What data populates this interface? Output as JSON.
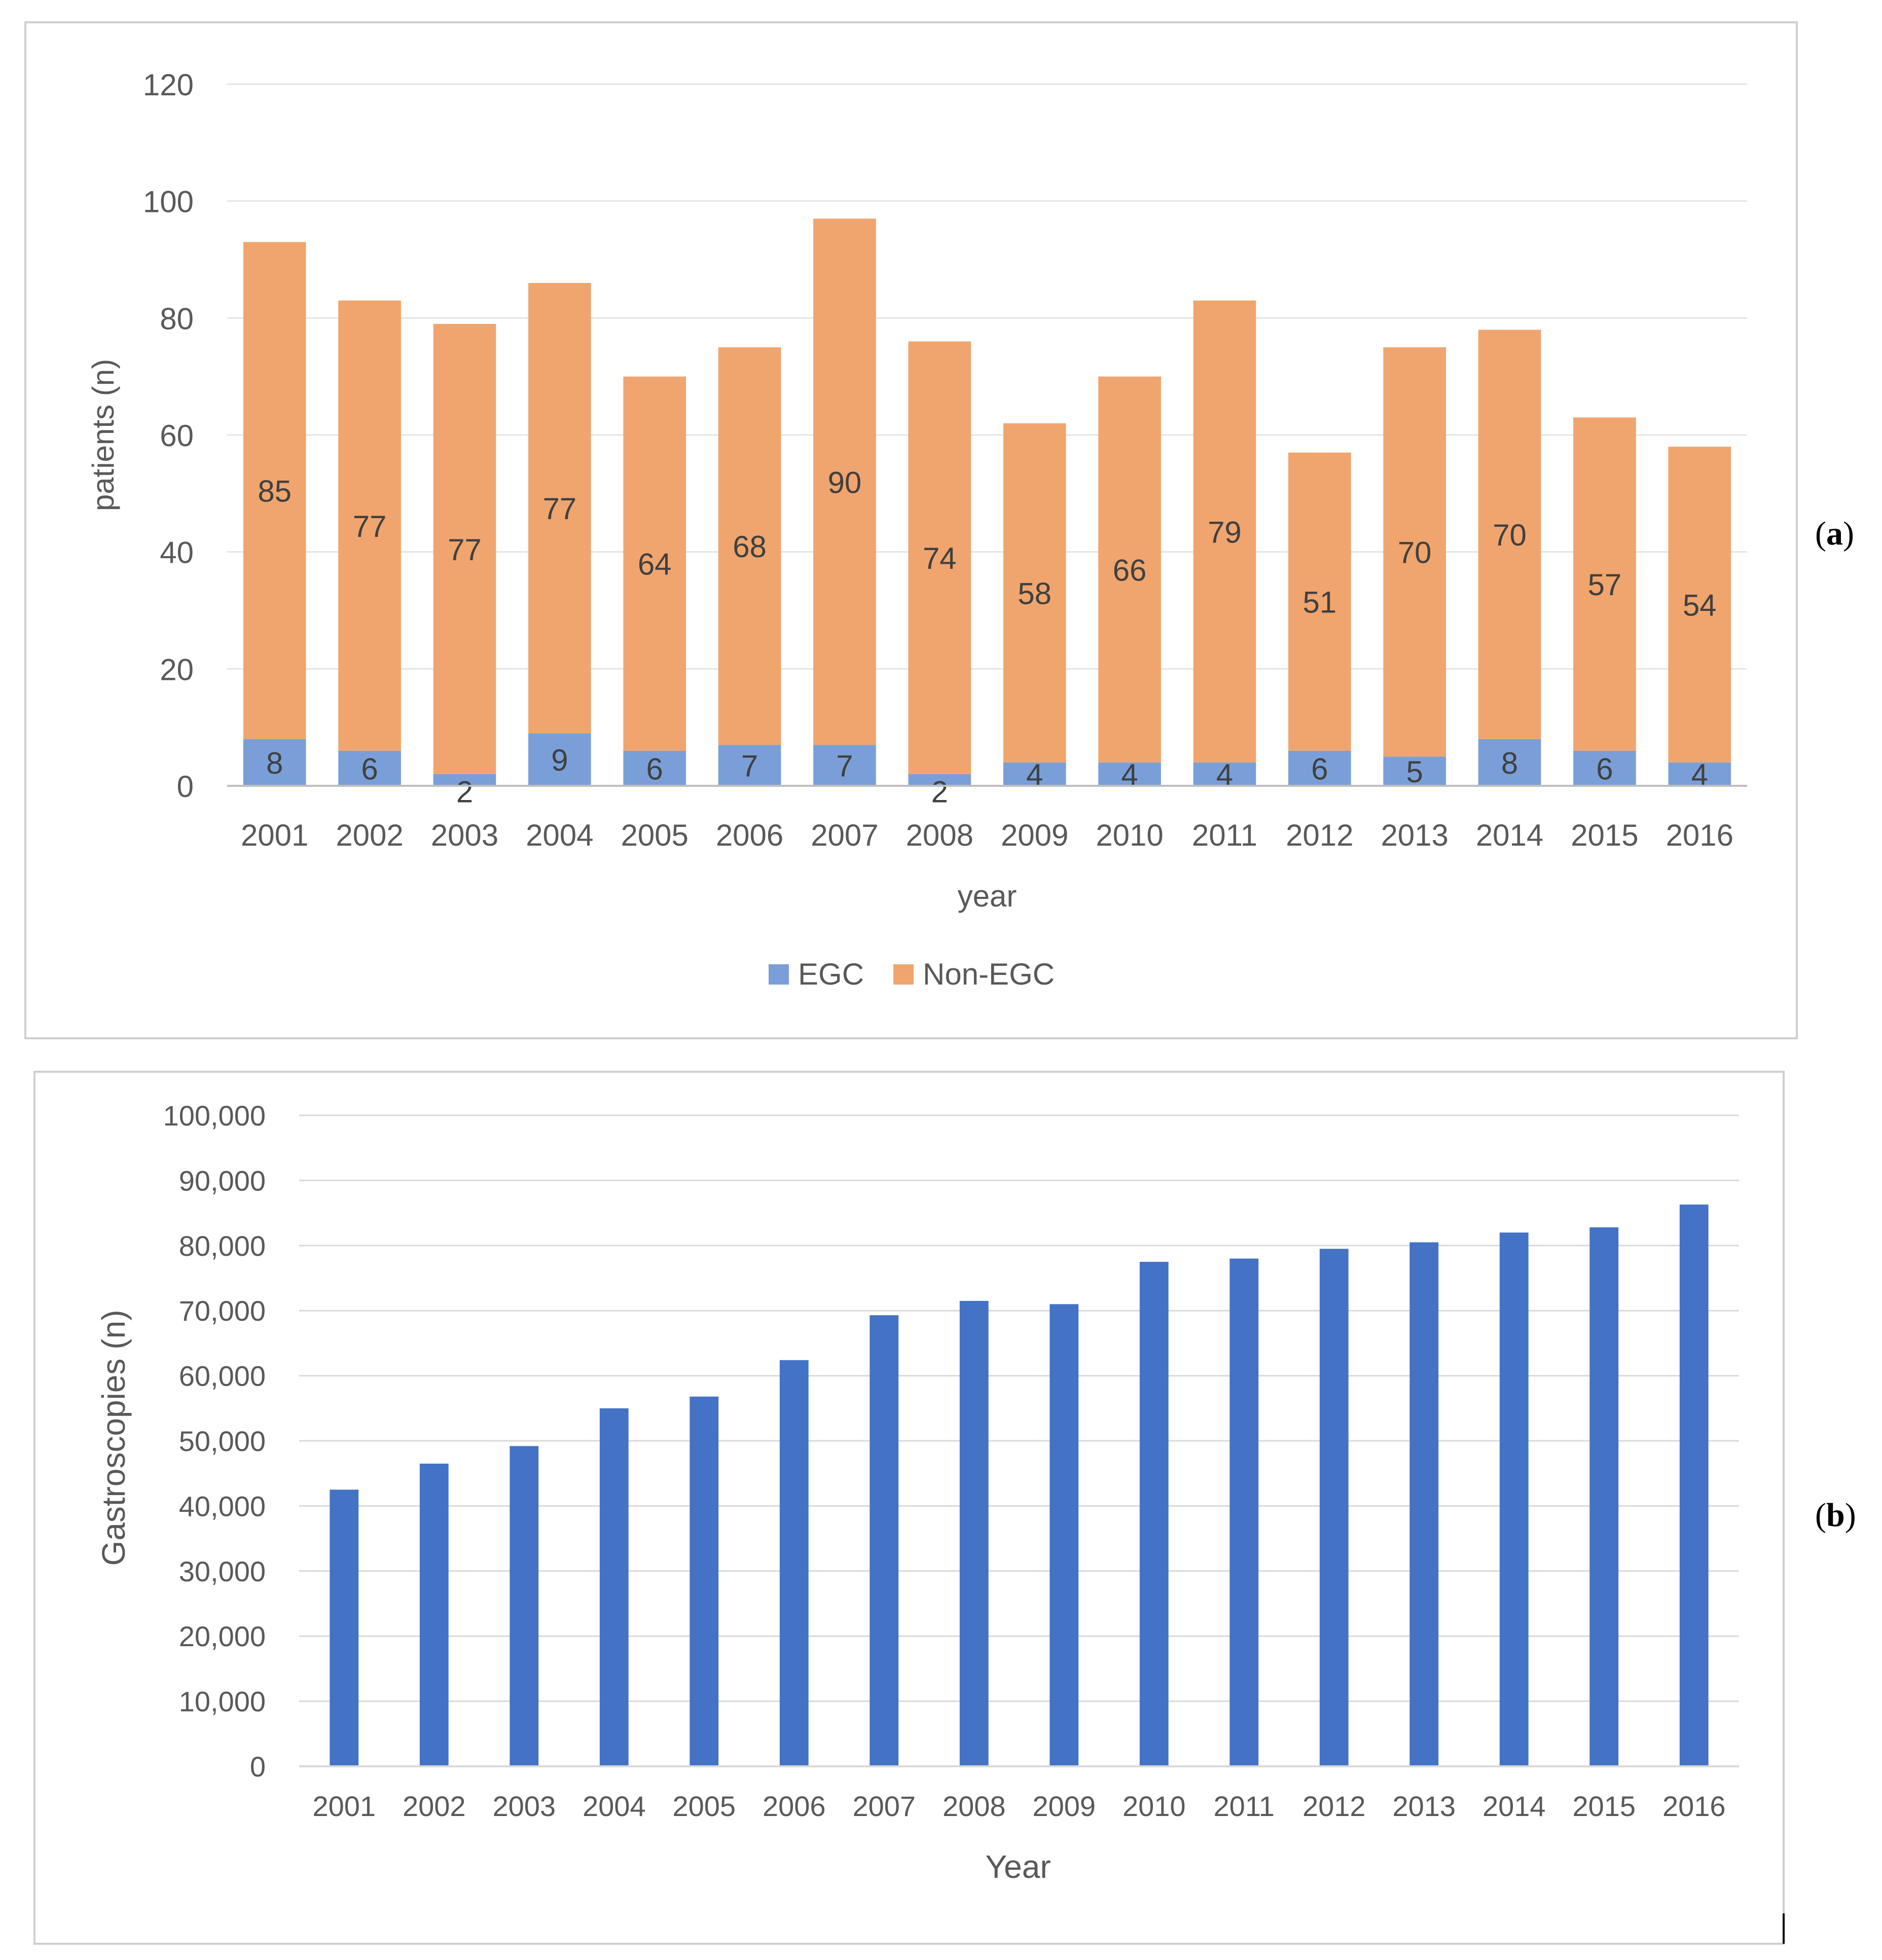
{
  "panels": [
    {
      "letter": "a",
      "label_open": "(",
      "label_close": ")"
    },
    {
      "letter": "b",
      "label_open": "(",
      "label_close": ")"
    }
  ],
  "chart_data": [
    {
      "type": "bar",
      "stacked": true,
      "title": "",
      "xlabel": "year",
      "ylabel": "patients (n)",
      "ylim": [
        0,
        120
      ],
      "yticks": [
        "0",
        "20",
        "40",
        "60",
        "80",
        "100",
        "120"
      ],
      "ytick_values": [
        0,
        20,
        40,
        60,
        80,
        100,
        120
      ],
      "grid": true,
      "legend_position": "bottom-center",
      "categories": [
        "2001",
        "2002",
        "2003",
        "2004",
        "2005",
        "2006",
        "2007",
        "2008",
        "2009",
        "2010",
        "2011",
        "2012",
        "2013",
        "2014",
        "2015",
        "2016"
      ],
      "series": [
        {
          "name": "EGC",
          "color": "#7a9fd8",
          "values": [
            8,
            6,
            2,
            9,
            6,
            7,
            7,
            2,
            4,
            4,
            4,
            6,
            5,
            8,
            6,
            4
          ]
        },
        {
          "name": "Non-EGC",
          "color": "#f0a56e",
          "values": [
            85,
            77,
            77,
            77,
            64,
            68,
            90,
            74,
            58,
            66,
            79,
            51,
            70,
            70,
            57,
            54
          ]
        }
      ]
    },
    {
      "type": "bar",
      "title": "",
      "xlabel": "Year",
      "ylabel": "Gastroscopies (n)",
      "ylim": [
        0,
        100000
      ],
      "yticks": [
        "0",
        "10,000",
        "20,000",
        "30,000",
        "40,000",
        "50,000",
        "60,000",
        "70,000",
        "80,000",
        "90,000",
        "100,000"
      ],
      "ytick_values": [
        0,
        10000,
        20000,
        30000,
        40000,
        50000,
        60000,
        70000,
        80000,
        90000,
        100000
      ],
      "grid": true,
      "categories": [
        "2001",
        "2002",
        "2003",
        "2004",
        "2005",
        "2006",
        "2007",
        "2008",
        "2009",
        "2010",
        "2011",
        "2012",
        "2013",
        "2014",
        "2015",
        "2016"
      ],
      "series": [
        {
          "name": "Gastroscopies",
          "color": "#4472c4",
          "values": [
            42500,
            46500,
            49200,
            55000,
            56800,
            62400,
            69300,
            71500,
            71000,
            77500,
            78000,
            79500,
            80500,
            82000,
            82800,
            86300
          ]
        }
      ]
    }
  ]
}
